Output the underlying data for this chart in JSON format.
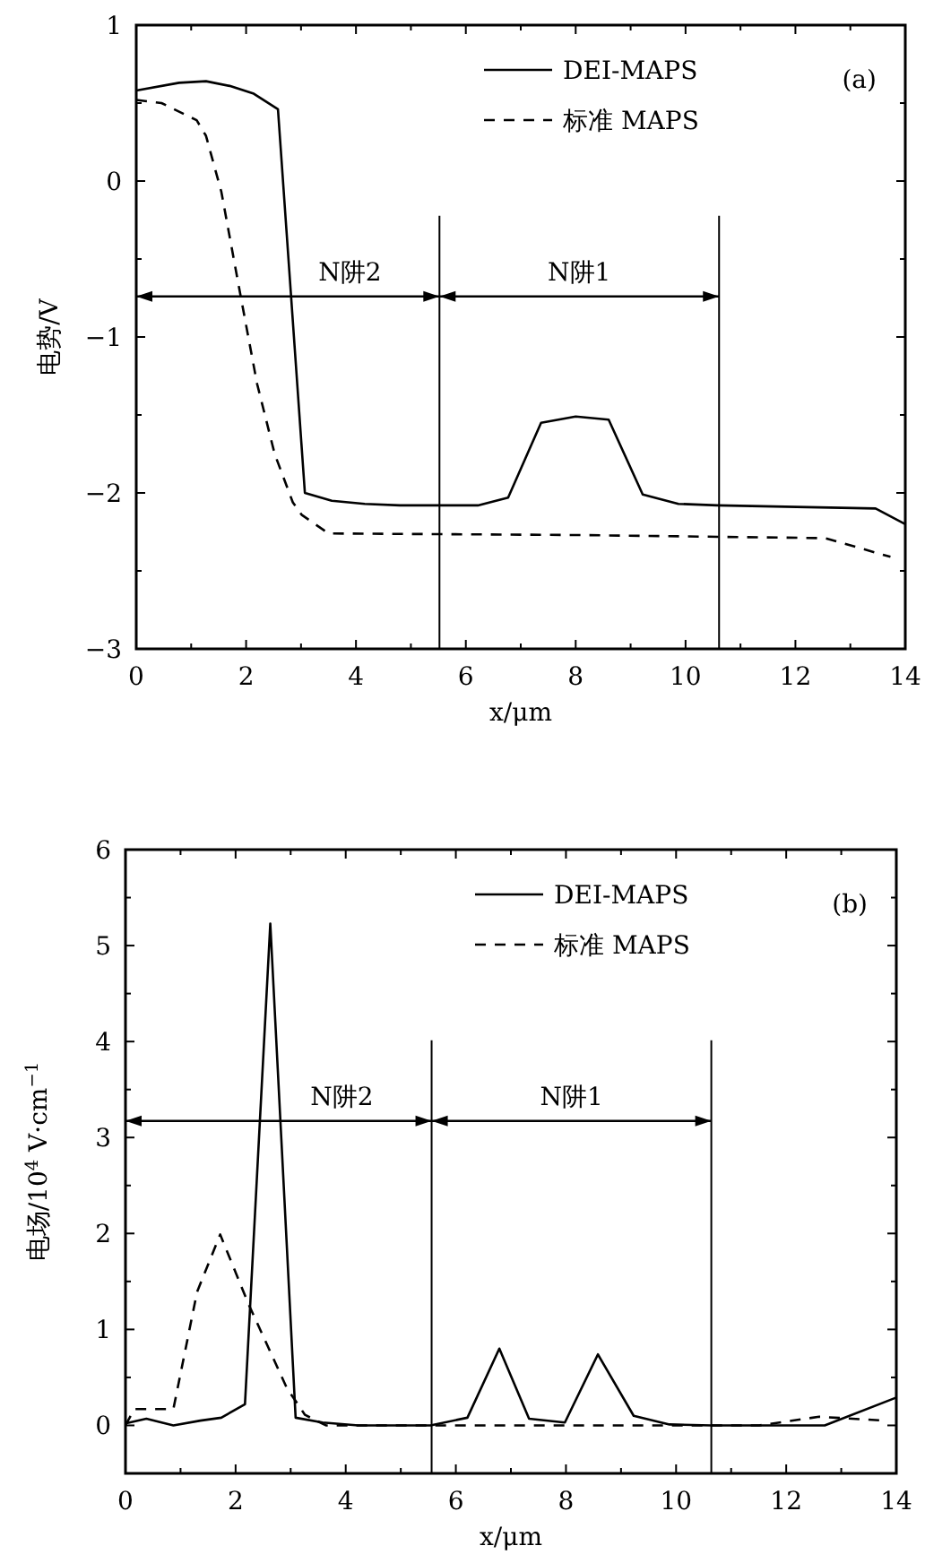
{
  "chart_data": [
    {
      "type": "line",
      "xlabel": "x/μm",
      "ylabel": "电势/V",
      "xlim": [
        0,
        14
      ],
      "ylim": [
        -3,
        1
      ],
      "xticks": [
        0,
        {
          "value": 1,
          "label": null
        },
        2,
        {
          "value": 3,
          "label": null
        },
        4,
        {
          "value": 5,
          "label": null
        },
        6,
        {
          "value": 7,
          "label": null
        },
        8,
        {
          "value": 9,
          "label": null
        },
        10,
        {
          "value": 11,
          "label": null
        },
        12,
        {
          "value": 13,
          "label": null
        },
        14
      ],
      "yticks": [
        {
          "value": -3,
          "label": "−3"
        },
        {
          "value": -2.5,
          "label": null
        },
        {
          "value": -2,
          "label": "−2"
        },
        {
          "value": -1.5,
          "label": null
        },
        {
          "value": -1,
          "label": "−1"
        },
        {
          "value": -0.5,
          "label": null
        },
        0,
        {
          "value": 0.5,
          "label": null
        },
        1
      ],
      "legend": "top right",
      "ref_lines": [
        {
          "axis": "x",
          "value": 5.52
        },
        {
          "axis": "x",
          "value": 10.61
        }
      ],
      "annotations": [
        "N阱2",
        "N阱1",
        "(a)"
      ],
      "series": [
        {
          "name": "DEI-MAPS",
          "color": "#000000",
          "line_style": "solid",
          "x": [
            0,
            0.78,
            1.27,
            1.7,
            2.14,
            2.58,
            3.07,
            3.56,
            4.16,
            4.8,
            6.22,
            6.77,
            7.37,
            8.0,
            8.6,
            9.22,
            9.87,
            10.58,
            13.46,
            14
          ],
          "values": [
            0.58,
            0.63,
            0.64,
            0.61,
            0.56,
            0.46,
            -2.0,
            -2.05,
            -2.07,
            -2.08,
            -2.08,
            -2.03,
            -1.55,
            -1.51,
            -1.53,
            -2.01,
            -2.07,
            -2.08,
            -2.1,
            -2.2
          ]
        },
        {
          "name": "标准 MAPS",
          "color": "#000000",
          "line_style": "dashed",
          "x": [
            0,
            0.46,
            1.1,
            1.27,
            1.55,
            1.87,
            2.2,
            2.52,
            2.85,
            3.01,
            3.5,
            8.0,
            12.54,
            13.73
          ],
          "values": [
            0.52,
            0.5,
            0.39,
            0.29,
            -0.07,
            -0.68,
            -1.3,
            -1.75,
            -2.06,
            -2.14,
            -2.26,
            -2.27,
            -2.29,
            -2.41
          ]
        }
      ]
    },
    {
      "type": "line",
      "xlabel": "x/μm",
      "ylabel": "电场/10$^{4}$ V·cm$^{−1}$",
      "xlim": [
        0,
        14
      ],
      "ylim": [
        -0.5,
        6
      ],
      "xticks": [
        0,
        {
          "value": 1,
          "label": null
        },
        2,
        {
          "value": 3,
          "label": null
        },
        4,
        {
          "value": 5,
          "label": null
        },
        6,
        {
          "value": 7,
          "label": null
        },
        8,
        {
          "value": 9,
          "label": null
        },
        10,
        {
          "value": 11,
          "label": null
        },
        12,
        {
          "value": 13,
          "label": null
        },
        14
      ],
      "yticks": [
        {
          "value": -0.5,
          "label": null
        },
        0,
        {
          "value": 0.5,
          "label": null
        },
        1,
        {
          "value": 1.5,
          "label": null
        },
        2,
        {
          "value": 2.5,
          "label": null
        },
        3,
        {
          "value": 3.5,
          "label": null
        },
        4,
        {
          "value": 4.5,
          "label": null
        },
        5,
        {
          "value": 5.5,
          "label": null
        },
        6
      ],
      "legend": "top right",
      "ref_lines": [
        {
          "axis": "x",
          "value": 5.56
        },
        {
          "axis": "x",
          "value": 10.64
        }
      ],
      "annotations": [
        "N阱2",
        "N阱1",
        "(b)"
      ],
      "series": [
        {
          "name": "DEI-MAPS",
          "color": "#000000",
          "line_style": "solid",
          "x": [
            0,
            0.38,
            0.87,
            1.36,
            1.74,
            2.17,
            2.63,
            3.09,
            3.58,
            4.23,
            5.54,
            6.21,
            6.79,
            7.33,
            7.98,
            8.58,
            9.23,
            9.88,
            10.64,
            12.7,
            14
          ],
          "values": [
            0.02,
            0.07,
            0,
            0.05,
            0.08,
            0.22,
            5.23,
            0.08,
            0.03,
            0,
            0,
            0.08,
            0.8,
            0.07,
            0.03,
            0.74,
            0.1,
            0.01,
            0,
            0,
            0.29
          ]
        },
        {
          "name": "标准 MAPS",
          "color": "#000000",
          "line_style": "dashed",
          "x": [
            0,
            0.16,
            0.87,
            1.3,
            1.72,
            2.23,
            2.93,
            3.26,
            3.64,
            11.51,
            12.6,
            13.79
          ],
          "values": [
            0,
            0.17,
            0.17,
            1.39,
            1.99,
            1.27,
            0.39,
            0.11,
            0,
            0,
            0.09,
            0.05
          ]
        }
      ]
    }
  ]
}
